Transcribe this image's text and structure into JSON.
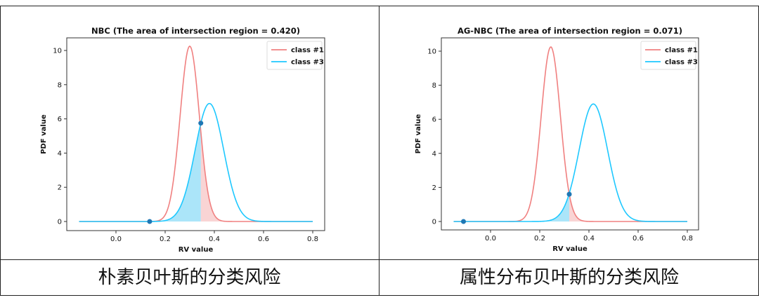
{
  "captions": [
    "朴素贝叶斯的分类风险",
    "属性分布贝叶斯的分类风险"
  ],
  "colors": {
    "class1": "#f08080",
    "class3": "#1ec8ff",
    "point": "#1f77b4",
    "fill_class1": "#f5b8b8",
    "fill_class3": "#8fdcf7"
  },
  "chart_data": [
    {
      "type": "line",
      "title": "NBC (The area of intersection region = 0.420)",
      "xlabel": "RV value",
      "ylabel": "PDF value",
      "xlim": [
        -0.15,
        0.8
      ],
      "ylim": [
        0,
        10.25
      ],
      "xticks": [
        "0.0",
        "0.2",
        "0.4",
        "0.6",
        "0.8"
      ],
      "yticks": [
        "0",
        "2",
        "4",
        "6",
        "8",
        "10"
      ],
      "legend": {
        "position": "top-right",
        "entries": [
          "class #1",
          "class #3"
        ]
      },
      "series": [
        {
          "name": "class #1",
          "distribution": "normal",
          "mean": 0.3,
          "std": 0.039,
          "peak": 10.25
        },
        {
          "name": "class #3",
          "distribution": "normal",
          "mean": 0.38,
          "std": 0.058,
          "peak": 6.9
        }
      ],
      "intersection": {
        "x": 0.345,
        "y": 5.75,
        "area": 0.42
      },
      "points": [
        {
          "x": 0.137,
          "y": 0
        },
        {
          "x": 0.345,
          "y": 5.75
        }
      ]
    },
    {
      "type": "line",
      "title": "AG-NBC (The area of intersection region = 0.071)",
      "xlabel": "RV value",
      "ylabel": "PDF value",
      "xlim": [
        -0.15,
        0.8
      ],
      "ylim": [
        0,
        10.25
      ],
      "xticks": [
        "0.0",
        "0.2",
        "0.4",
        "0.6",
        "0.8"
      ],
      "yticks": [
        "0",
        "2",
        "4",
        "6",
        "8",
        "10"
      ],
      "legend": {
        "position": "top-right",
        "entries": [
          "class #1",
          "class #3"
        ]
      },
      "series": [
        {
          "name": "class #1",
          "distribution": "normal",
          "mean": 0.245,
          "std": 0.039,
          "peak": 10.25
        },
        {
          "name": "class #3",
          "distribution": "normal",
          "mean": 0.418,
          "std": 0.058,
          "peak": 6.9
        }
      ],
      "intersection": {
        "x": 0.32,
        "y": 1.6,
        "area": 0.071
      },
      "points": [
        {
          "x": -0.11,
          "y": 0
        },
        {
          "x": 0.32,
          "y": 1.6
        }
      ]
    }
  ]
}
